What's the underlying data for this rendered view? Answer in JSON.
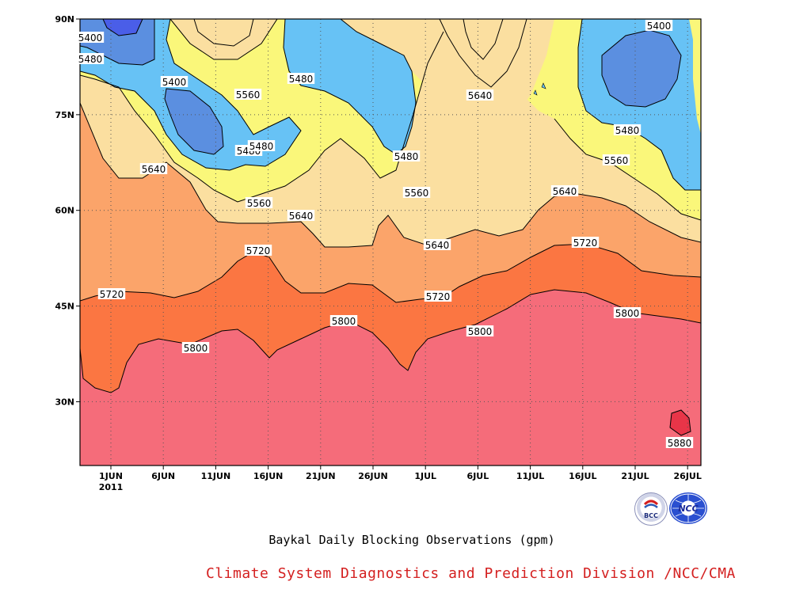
{
  "chart_data": {
    "type": "contour",
    "title": "Baykal Daily Blocking Observations (gpm)",
    "x_ticks": [
      "1JUN",
      "6JUN",
      "11JUN",
      "16JUN",
      "21JUN",
      "26JUN",
      "1JUL",
      "6JUL",
      "11JUL",
      "16JUL",
      "21JUL",
      "26JUL"
    ],
    "x_year_label": "2011",
    "y_ticks": [
      "90N",
      "75N",
      "60N",
      "45N",
      "30N"
    ],
    "y_tick_values": [
      90,
      75,
      60,
      45,
      30
    ],
    "ylim": [
      20,
      90
    ],
    "contour_levels": [
      5400,
      5480,
      5560,
      5640,
      5720,
      5800,
      5880
    ],
    "colors": {
      "lt5400": "#4a5ee8",
      "5400_5480": "#5b8fe0",
      "5480_5560": "#67c2f5",
      "5560_5640": "#faf77a",
      "5640_5720": "#fbdfa0",
      "5720_5800": "#fba46a",
      "5800_5880": "#fb7642",
      "gt5880": "#f56c7a",
      "peak": "#e83548"
    },
    "contour_labels": [
      {
        "value": "5400",
        "x": "~29 May",
        "y": "88N"
      },
      {
        "value": "5480",
        "x": "~29 May",
        "y": "84N"
      },
      {
        "value": "5400",
        "x": "~7 Jun",
        "y": "80N"
      },
      {
        "value": "5560",
        "x": "~14 Jun",
        "y": "78N"
      },
      {
        "value": "5480",
        "x": "~22 Jun",
        "y": "81N"
      },
      {
        "value": "5480",
        "x": "~15 Jun",
        "y": "70N"
      },
      {
        "value": "5480",
        "x": "~16 Jun",
        "y": "71N"
      },
      {
        "value": "5640",
        "x": "~6 Jun",
        "y": "66N"
      },
      {
        "value": "5560",
        "x": "~16 Jun",
        "y": "61N"
      },
      {
        "value": "5640",
        "x": "~20 Jun",
        "y": "59N"
      },
      {
        "value": "5480",
        "x": "~30 Jun",
        "y": "68N"
      },
      {
        "value": "5560",
        "x": "~1 Jul",
        "y": "62N"
      },
      {
        "value": "5640",
        "x": "~6 Jul",
        "y": "77N"
      },
      {
        "value": "5400",
        "x": "~23 Jul",
        "y": "89N"
      },
      {
        "value": "5480",
        "x": "~19 Jul",
        "y": "72N"
      },
      {
        "value": "5560",
        "x": "~18 Jul",
        "y": "67N"
      },
      {
        "value": "5640",
        "x": "~14 Jul",
        "y": "62N"
      },
      {
        "value": "5640",
        "x": "~1 Jul",
        "y": "54N"
      },
      {
        "value": "5720",
        "x": "~16 Jun",
        "y": "53N"
      },
      {
        "value": "5720",
        "x": "~17 Jul",
        "y": "54N"
      },
      {
        "value": "5720",
        "x": "~31 May",
        "y": "47N"
      },
      {
        "value": "5720",
        "x": "~2 Jul",
        "y": "46N"
      },
      {
        "value": "5800",
        "x": "~24 Jun",
        "y": "43N"
      },
      {
        "value": "5800",
        "x": "~9 Jun",
        "y": "39N"
      },
      {
        "value": "5800",
        "x": "~5 Jul",
        "y": "41N"
      },
      {
        "value": "5800",
        "x": "~19 Jul",
        "y": "44N"
      },
      {
        "value": "5880",
        "x": "~24 Jul",
        "y": "24N"
      }
    ]
  },
  "caption": "Baykal Daily Blocking Observations (gpm)",
  "credit": "Climate System Diagnostics and Prediction Division /NCC/CMA",
  "logos": [
    {
      "icon": "bcc-logo-icon",
      "text": "BCC"
    },
    {
      "icon": "ncc-logo-icon",
      "text": "NCC"
    }
  ]
}
